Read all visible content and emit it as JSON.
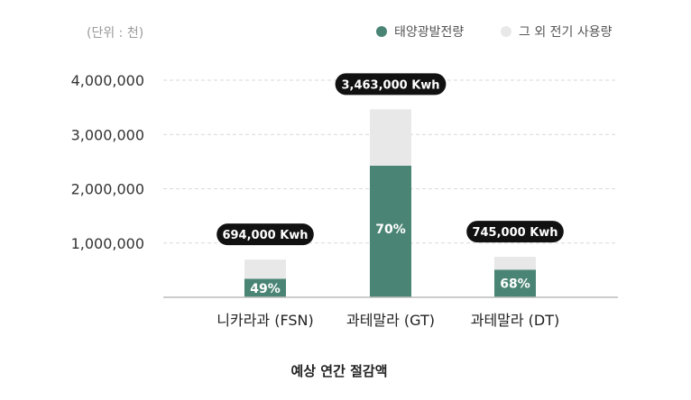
{
  "chart_data": {
    "type": "bar",
    "stacked": true,
    "unit_note": "(단위 : 천)",
    "caption": "예상 연간 절감액",
    "categories": [
      "니카라과 (FSN)",
      "과테말라 (GT)",
      "과테말라 (DT)"
    ],
    "series": [
      {
        "name": "태양광발전량",
        "color": "#4a8474",
        "values": [
          340000,
          2424000,
          507000
        ]
      },
      {
        "name": "그 외 전기 사용량",
        "color": "#e8e8e8",
        "values": [
          354000,
          1039000,
          238000
        ]
      }
    ],
    "totals": [
      694000,
      3463000,
      745000
    ],
    "total_labels": [
      "694,000 Kwh",
      "3,463,000 Kwh",
      "745,000 Kwh"
    ],
    "percent_labels": [
      "49%",
      "70%",
      "68%"
    ],
    "y_ticks": [
      1000000,
      2000000,
      3000000,
      4000000
    ],
    "y_tick_labels": [
      "1,000,000",
      "2,000,000",
      "3,000,000",
      "4,000,000"
    ],
    "ylim": [
      0,
      4000000
    ],
    "grid": true,
    "legend_position": "top-right",
    "tooltip_color": "#111111"
  }
}
